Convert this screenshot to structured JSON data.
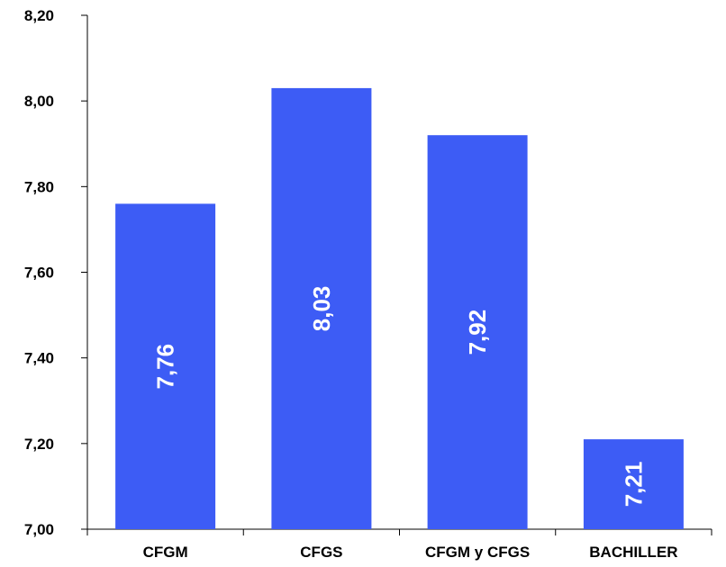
{
  "chart_data": {
    "type": "bar",
    "categories": [
      "CFGM",
      "CFGS",
      "CFGM y CFGS",
      "BACHILLER"
    ],
    "values": [
      7.76,
      8.03,
      7.92,
      7.21
    ],
    "data_labels": [
      "7,76",
      "8,03",
      "7,92",
      "7,21"
    ],
    "ylim": [
      7.0,
      8.2
    ],
    "yticks": [
      7.0,
      7.2,
      7.4,
      7.6,
      7.8,
      8.0,
      8.2
    ],
    "ytick_labels": [
      "7,00",
      "7,20",
      "7,40",
      "7,60",
      "7,80",
      "8,00",
      "8,20"
    ],
    "grid": false,
    "title": "",
    "xlabel": "",
    "ylabel": "",
    "colors": {
      "bar": "#3d5cf5",
      "axis": "#000000",
      "data_label": "#ffffff"
    }
  }
}
